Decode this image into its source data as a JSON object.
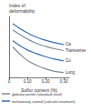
{
  "chart_data": {
    "type": "line",
    "y_label": "Index of\ndeformability",
    "x_label": "Sulfur content (%)",
    "x": [
      0.02,
      0.06,
      0.1,
      0.15,
      0.2,
      0.25,
      0.3
    ],
    "series": [
      {
        "name": "Ca",
        "color": "#3a6fb0",
        "values": [
          88,
          80,
          73,
          66,
          61,
          57,
          54
        ]
      },
      {
        "name": "Transverse",
        "color": "#7f8c99",
        "values": [
          78,
          70,
          63,
          56,
          51,
          47,
          44
        ]
      },
      {
        "name": "Co",
        "color": "#3a6fb0",
        "values": [
          60,
          52,
          45,
          39,
          34,
          30,
          27
        ]
      },
      {
        "name": "Long",
        "color": "#7f8c99",
        "values": [
          50,
          38,
          28,
          20,
          14,
          10,
          8
        ]
      }
    ],
    "xlim": [
      0,
      0.33
    ],
    "xticks": [
      0,
      {
        "value": 0.1,
        "label": "0.10"
      },
      {
        "value": 0.2,
        "label": "0.20"
      },
      {
        "value": 0.3,
        "label": "0.30"
      }
    ],
    "ylim": [
      0,
      100
    ],
    "tick_labels": "x",
    "grid": false,
    "annotations": [
      {
        "text": "globular perlite (standard steel)",
        "color": "#7f8c99"
      },
      {
        "text": "inclusionary control (calcium treatment)",
        "color": "#3a6fb0"
      }
    ]
  }
}
